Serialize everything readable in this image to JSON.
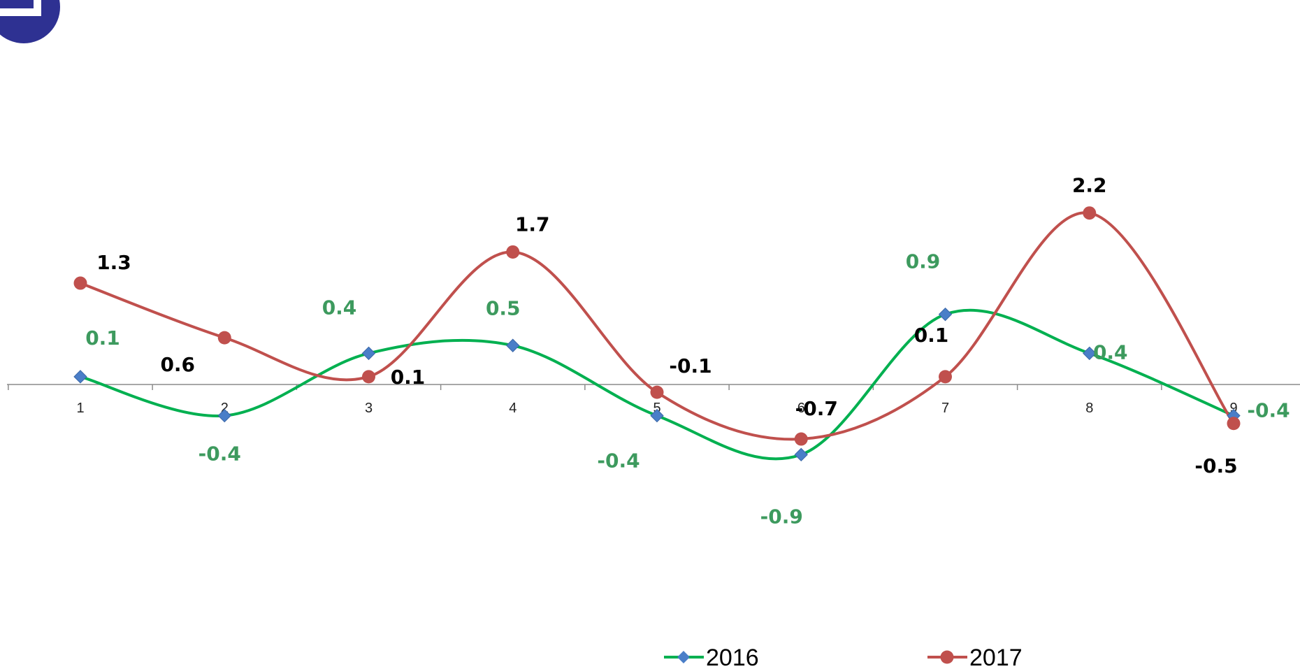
{
  "chart_data": {
    "type": "line",
    "title": "",
    "xlabel": "",
    "ylabel": "",
    "x": [
      1,
      2,
      3,
      4,
      5,
      6,
      7,
      8,
      9
    ],
    "x_tick_labels": [
      "1",
      "2",
      "3",
      "4",
      "5",
      "6",
      "7",
      "8",
      "9"
    ],
    "ylim": [
      -2.5,
      2.6
    ],
    "smooth": true,
    "grid": false,
    "legend_position": "bottom",
    "series": [
      {
        "name": "2016",
        "values": [
          0.1,
          -0.4,
          0.4,
          0.5,
          -0.4,
          -0.9,
          0.9,
          0.4,
          -0.4
        ],
        "labels": [
          "0.1",
          "-0.4",
          "0.4",
          "0.5",
          "-0.4",
          "-0.9",
          "0.9",
          "0.4",
          "-0.4"
        ],
        "line_color": "#00b050",
        "marker_color": "#4a7ec8",
        "label_color": "#3d9a5e",
        "marker": "diamond"
      },
      {
        "name": "2017",
        "values": [
          1.3,
          0.6,
          0.1,
          1.7,
          -0.1,
          -0.7,
          0.1,
          2.2,
          -0.5
        ],
        "labels": [
          "1.3",
          "0.6",
          "0.1",
          "1.7",
          "-0.1",
          "-0.7",
          "0.1",
          "2.2",
          "-0.5"
        ],
        "line_color": "#c0504d",
        "marker_color": "#c0504d",
        "label_color": "#000000",
        "marker": "circle"
      }
    ]
  },
  "logo": {
    "icon": "corner-logo-icon",
    "color": "#2e3192"
  }
}
